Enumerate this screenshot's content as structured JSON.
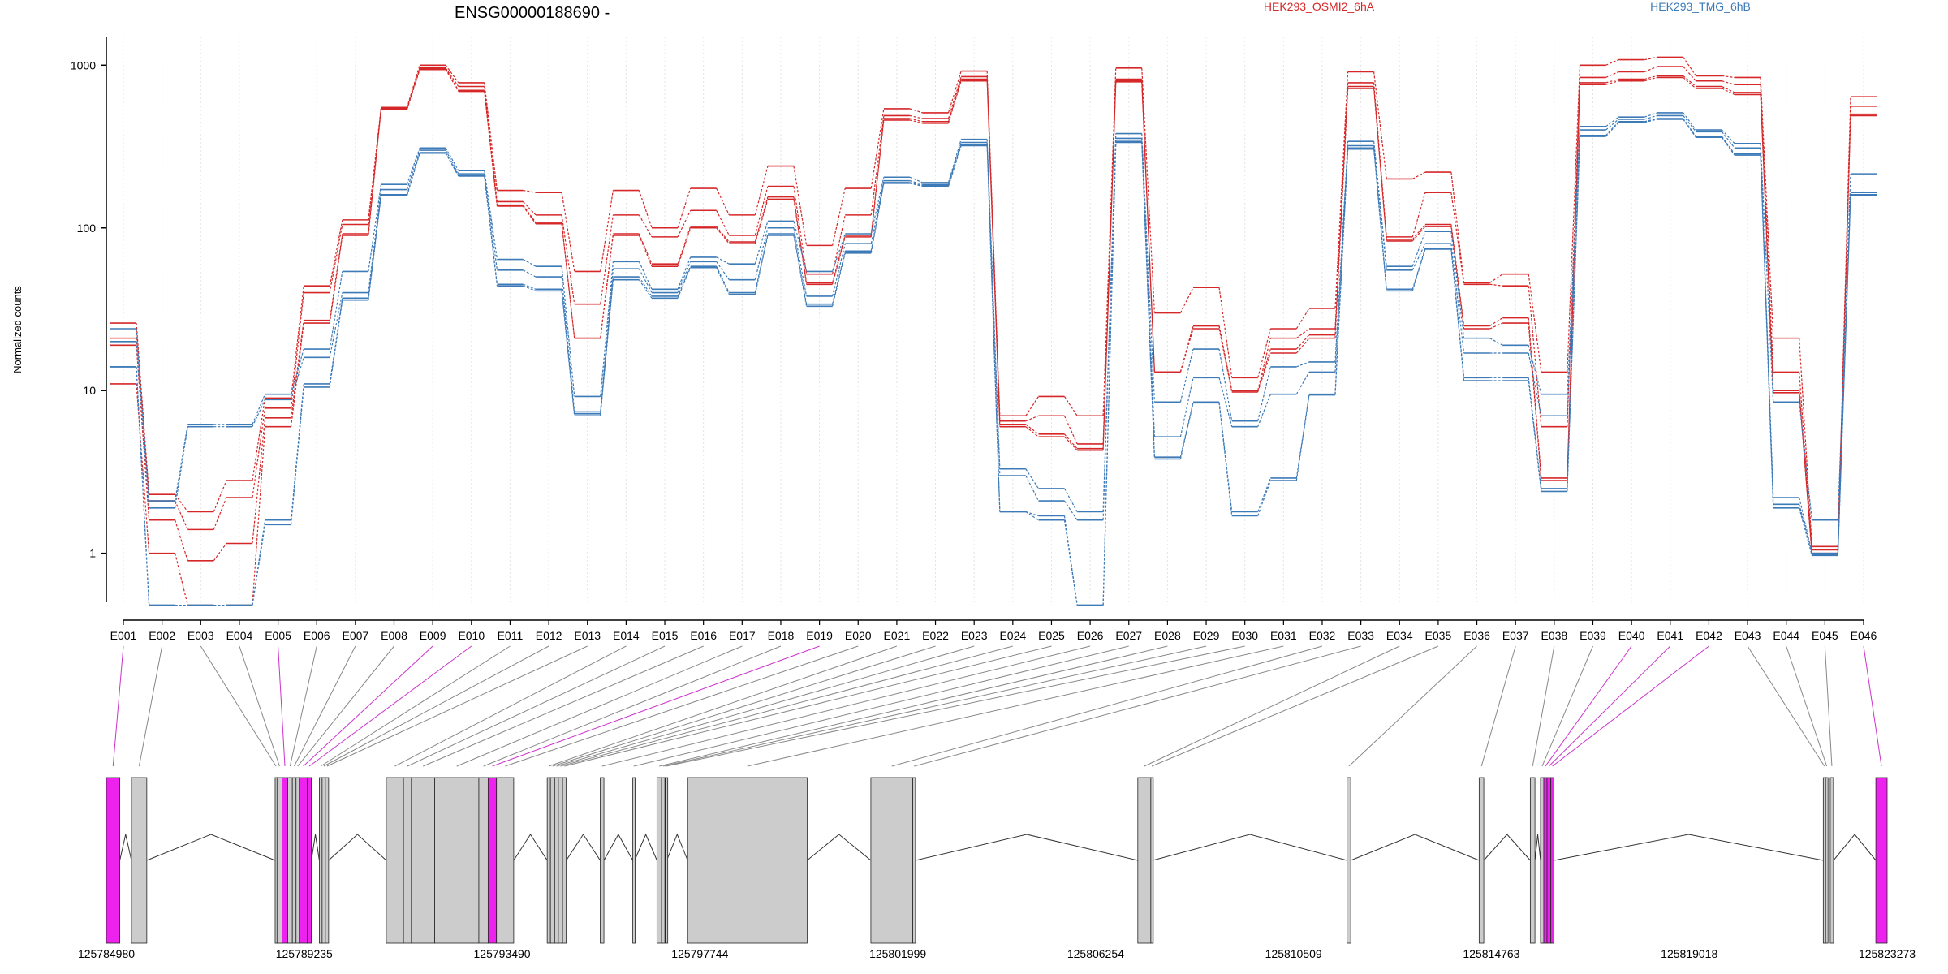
{
  "chart_data": {
    "type": "line",
    "title": "ENSG00000188690 -",
    "ylabel": "Normalized counts",
    "xlabel": "",
    "yscale": "log",
    "ylim": [
      0.5,
      1500
    ],
    "yticks": [
      1,
      10,
      100,
      1000
    ],
    "ytick_labels": [
      "1",
      "10",
      "100",
      "1000"
    ],
    "grid": "vertical dotted lines at each exon",
    "legend": "top",
    "colors": {
      "HEK293_OSMI2_6hA": "#d62728",
      "HEK293_TMG_6hB": "#3d7ab8",
      "highlight": "#ee22ee",
      "exon": "#cccccc"
    },
    "categories": [
      "E001",
      "E002",
      "E003",
      "E004",
      "E005",
      "E006",
      "E007",
      "E008",
      "E009",
      "E010",
      "E011",
      "E012",
      "E013",
      "E014",
      "E015",
      "E016",
      "E017",
      "E018",
      "E019",
      "E020",
      "E021",
      "E022",
      "E023",
      "E024",
      "E025",
      "E026",
      "E027",
      "E028",
      "E029",
      "E030",
      "E031",
      "E032",
      "E033",
      "E034",
      "E035",
      "E036",
      "E037",
      "E038",
      "E039",
      "E040",
      "E041",
      "E042",
      "E043",
      "E044",
      "E045",
      "E046"
    ],
    "series": [
      {
        "name": "HEK293_OSMI2_6hA",
        "group": "HEK293_OSMI2_6hA",
        "values": [
          26,
          2.3,
          1.8,
          2.8,
          9,
          44,
          112,
          550,
          1000,
          780,
          170,
          165,
          54,
          170,
          100,
          175,
          120,
          240,
          78,
          175,
          540,
          510,
          920,
          7,
          9.2,
          7,
          960,
          30,
          43,
          12,
          24,
          32,
          910,
          200,
          220,
          46,
          52,
          13,
          1000,
          1080,
          1120,
          860,
          840,
          21,
          1.1,
          640
        ]
      },
      {
        "name": "HEK293_OSMI2_6hA",
        "group": "HEK293_OSMI2_6hA",
        "values": [
          21,
          2.1,
          1.4,
          2.2,
          7.8,
          40,
          105,
          540,
          960,
          740,
          145,
          120,
          34,
          120,
          88,
          128,
          90,
          180,
          52,
          120,
          490,
          470,
          850,
          6.5,
          7,
          4.7,
          820,
          13,
          25,
          10,
          21,
          24,
          780,
          88,
          165,
          45,
          44,
          6,
          840,
          910,
          980,
          800,
          760,
          13,
          1.05,
          560
        ]
      },
      {
        "name": "HEK293_OSMI2_6hA",
        "group": "HEK293_OSMI2_6hA",
        "values": [
          19,
          1.6,
          0.9,
          1.15,
          6.8,
          27,
          92,
          545,
          950,
          700,
          138,
          108,
          21,
          92,
          60,
          102,
          82,
          155,
          46,
          90,
          470,
          450,
          820,
          6.2,
          5.4,
          4.4,
          800,
          13,
          25,
          10,
          18,
          22,
          740,
          85,
          105,
          25,
          28,
          2.9,
          780,
          820,
          860,
          740,
          680,
          10,
          1.0,
          500
        ]
      },
      {
        "name": "HEK293_OSMI2_6hA",
        "group": "HEK293_OSMI2_6hA",
        "values": [
          11,
          1.0,
          0.48,
          0.48,
          6.0,
          26,
          90,
          535,
          940,
          690,
          136,
          106,
          21,
          90,
          58,
          100,
          80,
          150,
          45,
          88,
          460,
          440,
          800,
          6.0,
          5.2,
          4.3,
          790,
          13,
          24,
          9.8,
          17,
          21,
          720,
          83,
          102,
          24,
          26,
          2.8,
          760,
          800,
          840,
          720,
          660,
          9.7,
          0.98,
          490
        ]
      },
      {
        "name": "HEK293_TMG_6hB",
        "group": "HEK293_TMG_6hB",
        "values": [
          24,
          2.1,
          6.2,
          6.2,
          9.5,
          18,
          54,
          185,
          310,
          225,
          64,
          58,
          9.2,
          62,
          42,
          66,
          60,
          110,
          54,
          92,
          205,
          190,
          350,
          3.3,
          2.5,
          1.8,
          380,
          8.5,
          18,
          6.5,
          14,
          15,
          340,
          58,
          95,
          21,
          19,
          9.5,
          420,
          480,
          510,
          400,
          330,
          8.5,
          1.6,
          215
        ]
      },
      {
        "name": "HEK293_TMG_6hB",
        "group": "HEK293_TMG_6hB",
        "values": [
          20,
          1.9,
          6.0,
          6.0,
          8.8,
          16,
          40,
          172,
          300,
          215,
          55,
          50,
          7.4,
          56,
          40,
          62,
          48,
          100,
          38,
          80,
          195,
          185,
          335,
          3.0,
          2.1,
          1.6,
          355,
          5.2,
          12,
          6.0,
          9.5,
          13,
          320,
          55,
          80,
          17,
          17,
          7.0,
          400,
          465,
          490,
          390,
          310,
          2.2,
          1.0,
          165
        ]
      },
      {
        "name": "HEK293_TMG_6hB",
        "group": "HEK293_TMG_6hB",
        "values": [
          14,
          0.48,
          0.48,
          0.48,
          1.6,
          11,
          37,
          160,
          290,
          210,
          45,
          42,
          7.2,
          50,
          38,
          58,
          40,
          92,
          34,
          72,
          190,
          182,
          325,
          1.8,
          1.7,
          0.48,
          340,
          3.9,
          8.5,
          1.8,
          2.9,
          9.5,
          310,
          42,
          75,
          12,
          12,
          2.5,
          370,
          450,
          470,
          365,
          285,
          2.0,
          0.98,
          160
        ]
      },
      {
        "name": "HEK293_TMG_6hB",
        "group": "HEK293_TMG_6hB",
        "values": [
          14,
          0.48,
          0.48,
          0.48,
          1.5,
          10.5,
          36,
          158,
          288,
          208,
          44,
          41,
          7.0,
          48,
          37,
          57,
          39,
          90,
          33,
          70,
          188,
          180,
          320,
          1.8,
          1.6,
          0.48,
          335,
          3.8,
          8.4,
          1.7,
          2.8,
          9.4,
          305,
          41,
          74,
          11.5,
          11.5,
          2.4,
          365,
          445,
          465,
          360,
          280,
          1.9,
          0.97,
          158
        ]
      }
    ],
    "legend_entries": [
      "HEK293_OSMI2_6hA",
      "HEK293_TMG_6hB"
    ],
    "highlighted_exons": [
      "E001",
      "E005",
      "E009",
      "E010",
      "E019",
      "E040",
      "E041",
      "E042",
      "E046"
    ],
    "gene_model": {
      "genomic_ticks": [
        "125784980",
        "125789235",
        "125793490",
        "125797744",
        "125801999",
        "125806254",
        "125810509",
        "125814763",
        "125819018",
        "125823273"
      ],
      "gene_start": 125784980,
      "gene_end": 125823273,
      "features": [
        {
          "exon": "E001",
          "start": 125784980,
          "end": 125785270
        },
        {
          "exon": "E002",
          "start": 125785520,
          "end": 125785850
        },
        {
          "exon": "E003",
          "start": 125788610,
          "end": 125788650
        },
        {
          "exon": "E004",
          "start": 125788650,
          "end": 125788760
        },
        {
          "exon": "E005",
          "start": 125788760,
          "end": 125788880
        },
        {
          "exon": "E006",
          "start": 125788880,
          "end": 125788980
        },
        {
          "exon": "E007",
          "start": 125788980,
          "end": 125789060
        },
        {
          "exon": "E008",
          "start": 125789060,
          "end": 125789130
        },
        {
          "exon": "E009",
          "start": 125789130,
          "end": 125789300
        },
        {
          "exon": "E010",
          "start": 125789300,
          "end": 125789390
        },
        {
          "exon": "E011",
          "start": 125789560,
          "end": 125789620
        },
        {
          "exon": "E012",
          "start": 125789620,
          "end": 125789690
        },
        {
          "exon": "E013",
          "start": 125789690,
          "end": 125789760
        },
        {
          "exon": "E014",
          "start": 125791000,
          "end": 125791370
        },
        {
          "exon": "E015",
          "start": 125791370,
          "end": 125791540
        },
        {
          "exon": "E016",
          "start": 125791540,
          "end": 125792040
        },
        {
          "exon": "E017",
          "start": 125792040,
          "end": 125792990
        },
        {
          "exon": "E018",
          "start": 125792990,
          "end": 125793190
        },
        {
          "exon": "E019",
          "start": 125793190,
          "end": 125793370
        },
        {
          "exon": "E020",
          "start": 125793370,
          "end": 125793740
        },
        {
          "exon": "E021",
          "start": 125794460,
          "end": 125794530
        },
        {
          "exon": "E022",
          "start": 125794530,
          "end": 125794620
        },
        {
          "exon": "E023",
          "start": 125794620,
          "end": 125794700
        },
        {
          "exon": "E024",
          "start": 125794700,
          "end": 125794790
        },
        {
          "exon": "E025",
          "start": 125794790,
          "end": 125794870
        },
        {
          "exon": "E026",
          "start": 125795600,
          "end": 125795680
        },
        {
          "exon": "E027",
          "start": 125796300,
          "end": 125796340
        },
        {
          "exon": "E028",
          "start": 125796820,
          "end": 125796920
        },
        {
          "exon": "E029",
          "start": 125796920,
          "end": 125796990
        },
        {
          "exon": "E030",
          "start": 125797000,
          "end": 125797030
        },
        {
          "exon": "E031",
          "start": 125797480,
          "end": 125800050
        },
        {
          "exon": "E032",
          "start": 125801420,
          "end": 125802320
        },
        {
          "exon": "E033",
          "start": 125802320,
          "end": 125802380
        },
        {
          "exon": "E034",
          "start": 125807160,
          "end": 125807440
        },
        {
          "exon": "E035",
          "start": 125807440,
          "end": 125807480
        },
        {
          "exon": "E036",
          "start": 125811660,
          "end": 125811740
        },
        {
          "exon": "E037",
          "start": 125814500,
          "end": 125814600
        },
        {
          "exon": "E038",
          "start": 125815600,
          "end": 125815700
        },
        {
          "exon": "E039",
          "start": 125815820,
          "end": 125815890
        },
        {
          "exon": "E040",
          "start": 125815890,
          "end": 125815960
        },
        {
          "exon": "E041",
          "start": 125815960,
          "end": 125816040
        },
        {
          "exon": "E042",
          "start": 125816040,
          "end": 125816110
        },
        {
          "exon": "E043",
          "start": 125821900,
          "end": 125821950
        },
        {
          "exon": "E044",
          "start": 125821950,
          "end": 125822000
        },
        {
          "exon": "E045",
          "start": 125822050,
          "end": 125822120
        },
        {
          "exon": "E046",
          "start": 125823030,
          "end": 125823273
        }
      ]
    }
  }
}
